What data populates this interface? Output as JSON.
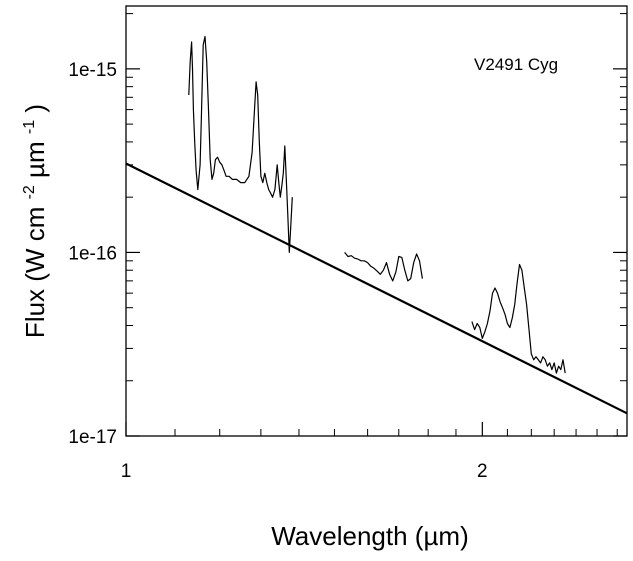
{
  "chart_data": {
    "type": "line",
    "title": "",
    "annotation": "V2491 Cyg",
    "xlabel": "Wavelength (µm)",
    "ylabel": {
      "prefix": "Flux (W cm",
      "sup1": "-2",
      "mid": " µm",
      "sup2": "-1",
      "suffix": ")"
    },
    "x_scale": "log",
    "y_scale": "log",
    "xlim": [
      1.0,
      2.65
    ],
    "ylim": [
      1e-17,
      2.2e-15
    ],
    "x_major_ticks": [
      1,
      2
    ],
    "x_tick_labels": [
      "1",
      "2"
    ],
    "x_minor_ticks": [
      1.1,
      1.2,
      1.3,
      1.4,
      1.5,
      1.6,
      1.7,
      1.8,
      1.9,
      2.1,
      2.2,
      2.3,
      2.4,
      2.5,
      2.6
    ],
    "y_major_ticks": [
      1e-17,
      1e-16,
      1e-15
    ],
    "y_tick_labels": [
      "1e-17",
      "1e-16",
      "1e-15"
    ],
    "y_minor_ticks": [
      2e-17,
      3e-17,
      4e-17,
      5e-17,
      6e-17,
      7e-17,
      8e-17,
      9e-17,
      2e-16,
      3e-16,
      4e-16,
      5e-16,
      6e-16,
      7e-16,
      8e-16,
      9e-16,
      2e-15
    ],
    "grid": false,
    "legend": "none",
    "series": [
      {
        "style": "spectrum",
        "x": [
          1.13,
          1.133,
          1.136,
          1.138,
          1.14,
          1.143,
          1.146,
          1.15,
          1.155,
          1.158,
          1.162,
          1.166,
          1.17,
          1.174,
          1.178,
          1.182,
          1.186,
          1.19,
          1.195,
          1.2,
          1.205,
          1.21,
          1.215,
          1.222,
          1.23,
          1.24,
          1.25,
          1.26,
          1.27,
          1.278,
          1.284,
          1.288,
          1.292,
          1.296,
          1.3,
          1.305,
          1.31,
          1.315,
          1.32,
          1.325,
          1.33,
          1.336,
          1.342,
          1.346,
          1.35,
          1.354,
          1.358,
          1.362,
          1.366,
          1.37,
          1.374,
          1.378,
          1.382
        ],
        "y": [
          7.2e-16,
          1.1e-15,
          1.4e-15,
          1e-15,
          6e-16,
          4e-16,
          2.8e-16,
          2.2e-16,
          3e-16,
          5.5e-16,
          1.35e-15,
          1.5e-15,
          1.1e-15,
          6e-16,
          3.2e-16,
          2.5e-16,
          2.7e-16,
          3.2e-16,
          3.3e-16,
          3.1e-16,
          3e-16,
          2.8e-16,
          2.6e-16,
          2.6e-16,
          2.5e-16,
          2.5e-16,
          2.4e-16,
          2.4e-16,
          2.6e-16,
          3.5e-16,
          6e-16,
          8.5e-16,
          7.2e-16,
          4e-16,
          2.6e-16,
          2.4e-16,
          2.7e-16,
          2.4e-16,
          2.2e-16,
          2.1e-16,
          2e-16,
          2.2e-16,
          3e-16,
          2.4e-16,
          2e-16,
          2.3e-16,
          2.7e-16,
          3.8e-16,
          2.5e-16,
          1.6e-16,
          1e-16,
          1.4e-16,
          2e-16
        ]
      },
      {
        "style": "spectrum",
        "x": [
          1.53,
          1.54,
          1.55,
          1.56,
          1.57,
          1.58,
          1.59,
          1.6,
          1.61,
          1.62,
          1.63,
          1.64,
          1.65,
          1.66,
          1.67,
          1.68,
          1.69,
          1.7,
          1.71,
          1.72,
          1.73,
          1.74,
          1.75,
          1.76,
          1.77,
          1.78
        ],
        "y": [
          1e-16,
          9.5e-17,
          9.6e-17,
          9.3e-17,
          9.2e-17,
          9e-17,
          9e-17,
          8.8e-17,
          8.4e-17,
          8.2e-17,
          7.9e-17,
          7.6e-17,
          8e-17,
          8.8e-17,
          7.6e-17,
          7e-17,
          7.8e-17,
          9.5e-17,
          9.4e-17,
          8e-17,
          7e-17,
          7.2e-17,
          8.8e-17,
          9.8e-17,
          9e-17,
          7.2e-17
        ]
      },
      {
        "style": "spectrum",
        "x": [
          1.96,
          1.97,
          1.98,
          1.99,
          2.0,
          2.01,
          2.02,
          2.03,
          2.04,
          2.05,
          2.06,
          2.07,
          2.08,
          2.09,
          2.1,
          2.11,
          2.12,
          2.13,
          2.14,
          2.15,
          2.16,
          2.17,
          2.18,
          2.19,
          2.2,
          2.21,
          2.22,
          2.23,
          2.24,
          2.25,
          2.26,
          2.27,
          2.28,
          2.29,
          2.3,
          2.31,
          2.32,
          2.33,
          2.34,
          2.35
        ],
        "y": [
          4.2e-17,
          3.8e-17,
          4.1e-17,
          3.9e-17,
          3.4e-17,
          3.7e-17,
          4.1e-17,
          4.8e-17,
          6e-17,
          6.4e-17,
          6e-17,
          5.4e-17,
          5e-17,
          4.6e-17,
          4.1e-17,
          3.9e-17,
          4.4e-17,
          5.2e-17,
          6.8e-17,
          8.6e-17,
          8e-17,
          6.4e-17,
          5.2e-17,
          3.8e-17,
          2.8e-17,
          2.6e-17,
          2.7e-17,
          2.6e-17,
          2.5e-17,
          2.7e-17,
          2.6e-17,
          2.4e-17,
          2.5e-17,
          2.3e-17,
          2.5e-17,
          2.2e-17,
          2.4e-17,
          2.3e-17,
          2.6e-17,
          2.2e-17
        ]
      },
      {
        "style": "fit-line",
        "x": [
          1.0,
          2.65
        ],
        "y": [
          3.05e-16,
          1.33e-17
        ]
      }
    ]
  }
}
